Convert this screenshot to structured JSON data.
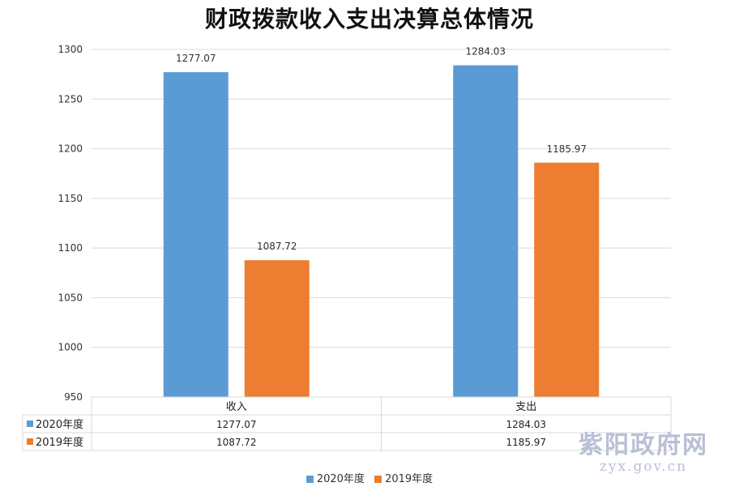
{
  "chart_data": {
    "type": "bar",
    "title": "财政拨款收入支出决算总体情况",
    "categories": [
      "收入",
      "支出"
    ],
    "series": [
      {
        "name": "2020年度",
        "values": [
          1277.07,
          1284.03
        ],
        "labels": [
          "1277.07",
          "1284.03"
        ],
        "color": "#5b9bd5"
      },
      {
        "name": "2019年度",
        "values": [
          1087.72,
          1185.97
        ],
        "labels": [
          "1087.72",
          "1185.97"
        ],
        "color": "#ed7d31"
      }
    ],
    "ylim": [
      950,
      1300
    ],
    "yticks": [
      950,
      1000,
      1050,
      1100,
      1150,
      1200,
      1250,
      1300
    ],
    "grid": true,
    "data_table": true,
    "legend_position": "bottom"
  },
  "watermark": {
    "title": "紫阳政府网",
    "url": "zyx.gov.cn"
  }
}
